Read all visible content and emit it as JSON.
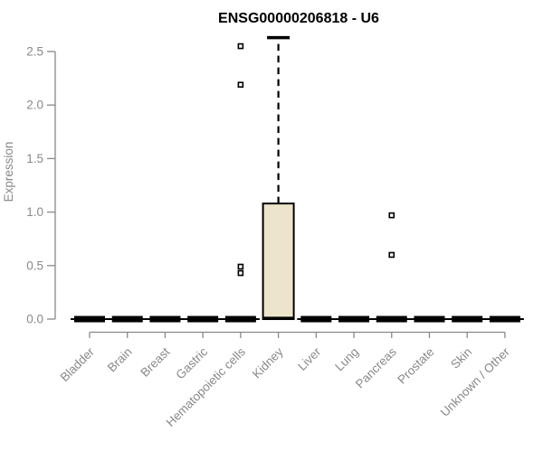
{
  "chart_data": {
    "type": "boxplot",
    "title": "ENSG00000206818 - U6",
    "ylabel": "Expression",
    "xlabel": "",
    "ylim": [
      0,
      2.65
    ],
    "yticks": [
      0,
      0.5,
      1,
      1.5,
      2,
      2.5
    ],
    "grid": false,
    "legend": false,
    "categories": [
      "Bladder",
      "Brain",
      "Breast",
      "Gastric",
      "Hematopoietic cells",
      "Kidney",
      "Liver",
      "Lung",
      "Pancreas",
      "Prostate",
      "Skin",
      "Unknown / Other"
    ],
    "boxes": [
      {
        "category": "Bladder",
        "lo": 0,
        "q1": 0,
        "med": 0,
        "q3": 0,
        "hi": 0,
        "outliers": []
      },
      {
        "category": "Brain",
        "lo": 0,
        "q1": 0,
        "med": 0,
        "q3": 0,
        "hi": 0,
        "outliers": []
      },
      {
        "category": "Breast",
        "lo": 0,
        "q1": 0,
        "med": 0,
        "q3": 0,
        "hi": 0,
        "outliers": []
      },
      {
        "category": "Gastric",
        "lo": 0,
        "q1": 0,
        "med": 0,
        "q3": 0,
        "hi": 0,
        "outliers": []
      },
      {
        "category": "Hematopoietic cells",
        "lo": 0,
        "q1": 0,
        "med": 0,
        "q3": 0,
        "hi": 0,
        "outliers": [
          2.55,
          2.19,
          0.49,
          0.43
        ]
      },
      {
        "category": "Kidney",
        "lo": 0,
        "q1": 0,
        "med": 0.01,
        "q3": 1.08,
        "hi": 2.63,
        "outliers": []
      },
      {
        "category": "Liver",
        "lo": 0,
        "q1": 0,
        "med": 0,
        "q3": 0,
        "hi": 0,
        "outliers": []
      },
      {
        "category": "Lung",
        "lo": 0,
        "q1": 0,
        "med": 0,
        "q3": 0,
        "hi": 0,
        "outliers": []
      },
      {
        "category": "Pancreas",
        "lo": 0,
        "q1": 0,
        "med": 0,
        "q3": 0,
        "hi": 0,
        "outliers": [
          0.97,
          0.6
        ]
      },
      {
        "category": "Prostate",
        "lo": 0,
        "q1": 0,
        "med": 0,
        "q3": 0,
        "hi": 0,
        "outliers": []
      },
      {
        "category": "Skin",
        "lo": 0,
        "q1": 0,
        "med": 0,
        "q3": 0,
        "hi": 0,
        "outliers": []
      },
      {
        "category": "Unknown / Other",
        "lo": 0,
        "q1": 0,
        "med": 0,
        "q3": 0,
        "hi": 0,
        "outliers": []
      }
    ],
    "colors": {
      "box_fill": "#ece5cc",
      "box_stroke": "#000000",
      "whisker": "#000000",
      "outlier_fill": "#ffffff",
      "axis": "#898989",
      "tick_label": "#898989",
      "title": "#000000",
      "background": "#ffffff"
    }
  }
}
